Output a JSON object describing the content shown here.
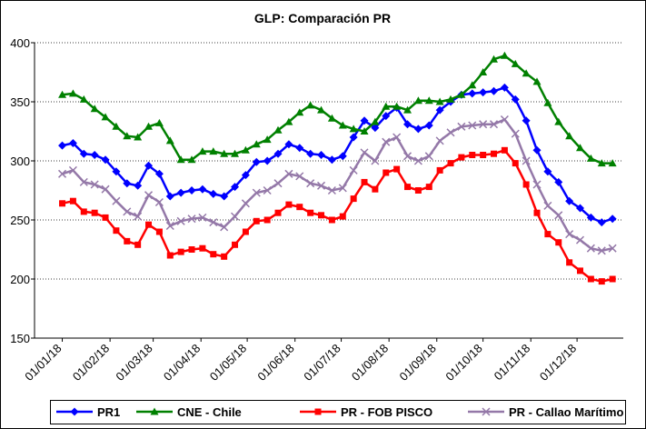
{
  "chart_data": {
    "type": "line",
    "title": "GLP: Comparación PR",
    "x": [
      0,
      7,
      14,
      21,
      28,
      35,
      42,
      49,
      56,
      63,
      70,
      77,
      84,
      91,
      98,
      105,
      112,
      119,
      126,
      133,
      140,
      147,
      154,
      161,
      168,
      175,
      182,
      189,
      196,
      203,
      210,
      217,
      224,
      231,
      238,
      245,
      252,
      259,
      266,
      273,
      280,
      287,
      294,
      301,
      308,
      315,
      322,
      329,
      336,
      343,
      350,
      357
    ],
    "xlim": [
      -18,
      364
    ],
    "xticks": [
      {
        "value": 0,
        "label": "01/01/18"
      },
      {
        "value": 31,
        "label": "01/02/18"
      },
      {
        "value": 59,
        "label": "01/03/18"
      },
      {
        "value": 90,
        "label": "01/04/18"
      },
      {
        "value": 120,
        "label": "01/05/18"
      },
      {
        "value": 151,
        "label": "01/06/18"
      },
      {
        "value": 181,
        "label": "01/07/18"
      },
      {
        "value": 212,
        "label": "01/08/18"
      },
      {
        "value": 243,
        "label": "01/09/18"
      },
      {
        "value": 273,
        "label": "01/10/18"
      },
      {
        "value": 304,
        "label": "01/11/18"
      },
      {
        "value": 334,
        "label": "01/12/18"
      }
    ],
    "ylim": [
      150,
      400
    ],
    "yticks": [
      150,
      200,
      250,
      300,
      350,
      400
    ],
    "grid": true,
    "legend": "bottom",
    "series": [
      {
        "name": "PR1",
        "color": "#0000ff",
        "marker": "diamond",
        "values": [
          313,
          315,
          306,
          305,
          301,
          291,
          281,
          279,
          296,
          289,
          270,
          273,
          275,
          276,
          272,
          270,
          278,
          288,
          299,
          300,
          306,
          314,
          311,
          306,
          305,
          301,
          304,
          320,
          334,
          328,
          338,
          345,
          331,
          327,
          330,
          343,
          350,
          356,
          357,
          358,
          359,
          362,
          352,
          334,
          309,
          291,
          282,
          266,
          260,
          252,
          248,
          251
        ]
      },
      {
        "name": "CNE - Chile",
        "color": "#008000",
        "marker": "triangle",
        "values": [
          356,
          357,
          352,
          344,
          337,
          329,
          321,
          320,
          329,
          332,
          317,
          301,
          301,
          308,
          308,
          306,
          306,
          309,
          314,
          318,
          326,
          333,
          341,
          347,
          343,
          336,
          330,
          327,
          325,
          333,
          346,
          346,
          343,
          351,
          351,
          350,
          352,
          356,
          364,
          375,
          386,
          389,
          382,
          374,
          367,
          349,
          333,
          321,
          311,
          302,
          298,
          298
        ]
      },
      {
        "name": "PR - FOB PISCO",
        "color": "#ff0000",
        "marker": "square",
        "values": [
          264,
          266,
          257,
          256,
          252,
          241,
          232,
          229,
          246,
          240,
          220,
          223,
          225,
          226,
          221,
          219,
          229,
          240,
          249,
          250,
          256,
          263,
          261,
          256,
          254,
          250,
          253,
          268,
          282,
          276,
          290,
          293,
          278,
          275,
          278,
          292,
          298,
          303,
          305,
          305,
          306,
          309,
          298,
          280,
          256,
          238,
          231,
          214,
          207,
          200,
          198,
          200
        ]
      },
      {
        "name": "PR - Callao Marítimo",
        "color": "#9478a8",
        "marker": "x",
        "values": [
          289,
          292,
          282,
          280,
          276,
          266,
          257,
          253,
          271,
          265,
          245,
          249,
          251,
          252,
          248,
          244,
          253,
          264,
          273,
          275,
          281,
          289,
          287,
          281,
          279,
          275,
          277,
          292,
          307,
          300,
          316,
          320,
          304,
          300,
          304,
          317,
          324,
          329,
          330,
          331,
          331,
          335,
          323,
          300,
          280,
          262,
          254,
          238,
          233,
          226,
          224,
          226
        ]
      }
    ]
  }
}
